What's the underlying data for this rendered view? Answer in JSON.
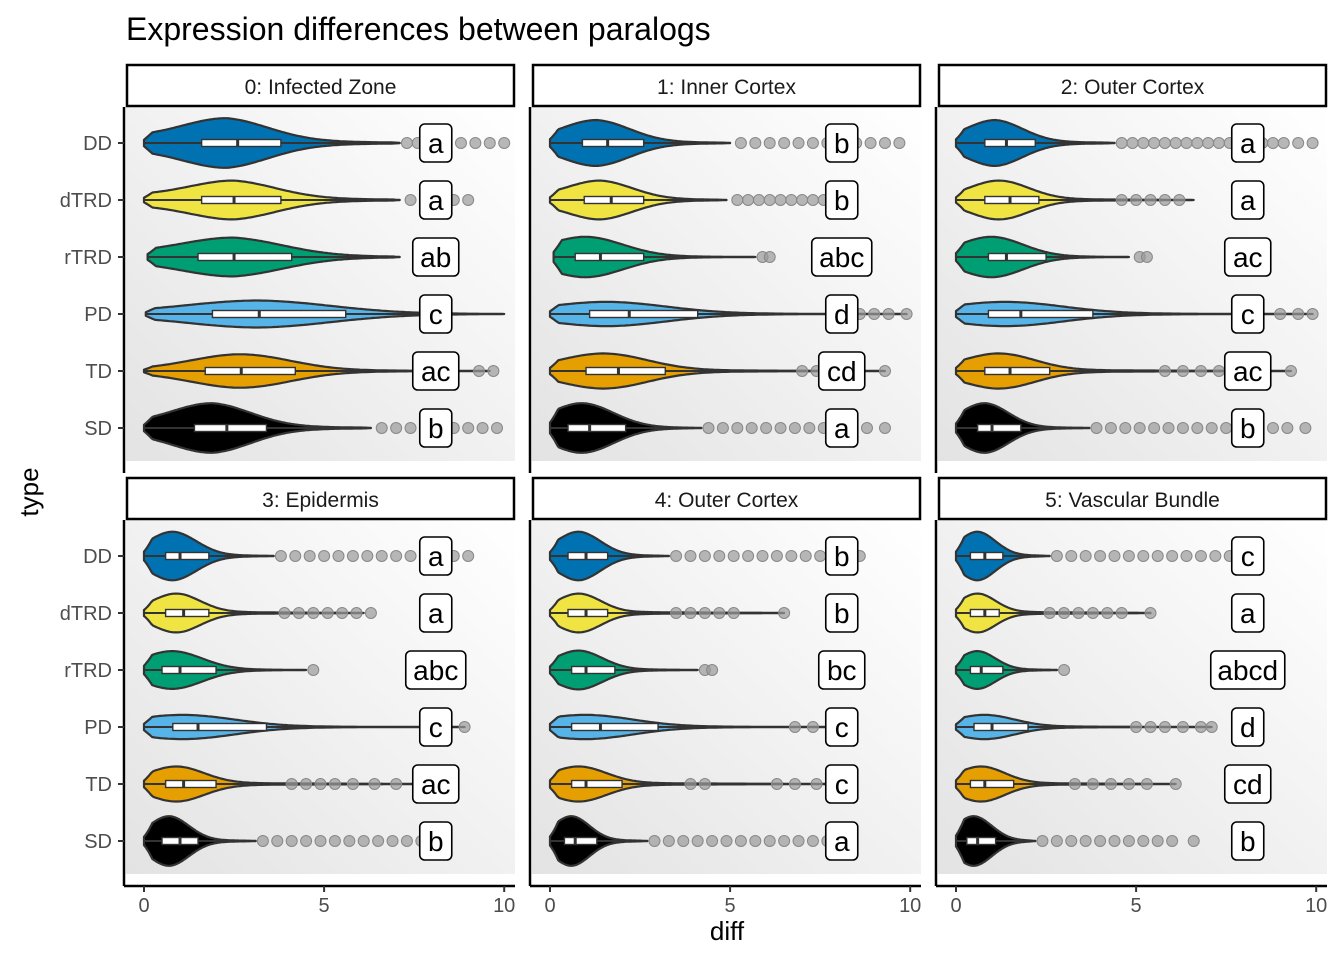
{
  "title": "Expression differences between paralogs",
  "xlabel": "diff",
  "ylabel": "type",
  "colors": {
    "DD": "#0072B2",
    "dTRD": "#F0E442",
    "rTRD": "#009E73",
    "PD": "#56B4E9",
    "TD": "#E69F00",
    "SD": "#000000",
    "outlier": "#9a9a9a",
    "panel_bg_light": "#ffffff",
    "panel_bg_dark": "#e6e6e6"
  },
  "chart_data": {
    "type": "violin",
    "xlim": [
      -0.5,
      10.3
    ],
    "x_ticks": [
      0,
      5,
      10
    ],
    "x_tick_labels": [
      "0",
      "5",
      "10"
    ],
    "categories": [
      "DD",
      "dTRD",
      "rTRD",
      "PD",
      "TD",
      "SD"
    ],
    "facets": [
      {
        "label": "0: Infected Zone",
        "series": [
          {
            "type": "DD",
            "letter": "a",
            "min": 0,
            "q1": 1.6,
            "median": 2.6,
            "q3": 3.8,
            "whisker": 7.1,
            "max_width": 0.92,
            "mode": 2.3,
            "tail": 0.35,
            "outliers": [
              7.3,
              7.6,
              8.0,
              8.4,
              8.8,
              9.2,
              9.6,
              10.0
            ]
          },
          {
            "type": "dTRD",
            "letter": "a",
            "min": 0,
            "q1": 1.6,
            "median": 2.5,
            "q3": 3.8,
            "whisker": 7.1,
            "max_width": 0.72,
            "mode": 2.5,
            "tail": 0.35,
            "outliers": [
              7.4,
              7.8,
              8.2,
              8.6,
              9.0
            ]
          },
          {
            "type": "rTRD",
            "letter": "ab",
            "min": 0.1,
            "q1": 1.5,
            "median": 2.5,
            "q3": 4.1,
            "whisker": 7.1,
            "max_width": 0.72,
            "mode": 2.5,
            "tail": 0.3,
            "outliers": []
          },
          {
            "type": "PD",
            "letter": "c",
            "min": 0.05,
            "q1": 1.9,
            "median": 3.2,
            "q3": 5.6,
            "whisker": 10.0,
            "max_width": 0.5,
            "mode": 3.2,
            "tail": 0.12,
            "outliers": []
          },
          {
            "type": "TD",
            "letter": "ac",
            "min": 0,
            "q1": 1.7,
            "median": 2.7,
            "q3": 4.2,
            "whisker": 9.6,
            "max_width": 0.62,
            "mode": 2.7,
            "tail": 0.1,
            "outliers": [
              9.3,
              9.7
            ]
          },
          {
            "type": "SD",
            "letter": "b",
            "min": 0,
            "q1": 1.4,
            "median": 2.3,
            "q3": 3.4,
            "whisker": 6.3,
            "max_width": 0.92,
            "mode": 1.9,
            "tail": 0.25,
            "outliers": [
              6.6,
              7.0,
              7.4,
              7.8,
              8.2,
              8.6,
              9.0,
              9.4,
              9.8
            ]
          }
        ]
      },
      {
        "label": "1: Inner Cortex",
        "series": [
          {
            "type": "DD",
            "letter": "b",
            "min": 0,
            "q1": 0.9,
            "median": 1.6,
            "q3": 2.6,
            "whisker": 5.0,
            "max_width": 0.85,
            "mode": 1.3,
            "tail": 0.2,
            "outliers": [
              5.3,
              5.7,
              6.1,
              6.5,
              6.9,
              7.3,
              7.7,
              8.1,
              8.5,
              8.9,
              9.3,
              9.7
            ]
          },
          {
            "type": "dTRD",
            "letter": "b",
            "min": 0,
            "q1": 0.95,
            "median": 1.7,
            "q3": 2.6,
            "whisker": 4.9,
            "max_width": 0.72,
            "mode": 1.4,
            "tail": 0.2,
            "outliers": [
              5.2,
              5.5,
              5.8,
              6.1,
              6.4,
              6.7,
              7.0,
              7.3,
              7.6
            ]
          },
          {
            "type": "rTRD",
            "letter": "abc",
            "min": 0.1,
            "q1": 0.7,
            "median": 1.4,
            "q3": 2.6,
            "whisker": 5.7,
            "max_width": 0.75,
            "mode": 1.0,
            "tail": 0.1,
            "outliers": [
              5.9,
              6.1
            ]
          },
          {
            "type": "PD",
            "letter": "d",
            "min": 0,
            "q1": 1.1,
            "median": 2.2,
            "q3": 4.1,
            "whisker": 9.9,
            "max_width": 0.45,
            "mode": 1.6,
            "tail": 0.1,
            "outliers": [
              8.6,
              9.0,
              9.4,
              9.9
            ]
          },
          {
            "type": "TD",
            "letter": "cd",
            "min": 0,
            "q1": 1.0,
            "median": 1.9,
            "q3": 3.2,
            "whisker": 9.3,
            "max_width": 0.65,
            "mode": 1.5,
            "tail": 0.1,
            "outliers": [
              7.0,
              7.4,
              7.8,
              8.3,
              9.3
            ]
          },
          {
            "type": "SD",
            "letter": "a",
            "min": 0,
            "q1": 0.5,
            "median": 1.1,
            "q3": 2.1,
            "whisker": 4.2,
            "max_width": 0.92,
            "mode": 0.9,
            "tail": 0.1,
            "outliers": [
              4.4,
              4.8,
              5.2,
              5.6,
              6.0,
              6.4,
              6.8,
              7.2,
              7.6,
              8.0,
              8.4,
              8.8,
              9.3
            ]
          }
        ]
      },
      {
        "label": "2: Outer Cortex",
        "series": [
          {
            "type": "DD",
            "letter": "a",
            "min": 0,
            "q1": 0.8,
            "median": 1.4,
            "q3": 2.2,
            "whisker": 4.4,
            "max_width": 0.85,
            "mode": 1.1,
            "tail": 0.2,
            "outliers": [
              4.6,
              4.9,
              5.2,
              5.5,
              5.8,
              6.1,
              6.4,
              6.7,
              7.0,
              7.3,
              7.6,
              7.9,
              8.2,
              8.5,
              8.8,
              9.1,
              9.5,
              9.9
            ]
          },
          {
            "type": "dTRD",
            "letter": "a",
            "min": 0,
            "q1": 0.8,
            "median": 1.5,
            "q3": 2.3,
            "whisker": 6.6,
            "max_width": 0.72,
            "mode": 1.2,
            "tail": 0.1,
            "outliers": [
              4.6,
              5.0,
              5.4,
              5.8,
              6.2
            ]
          },
          {
            "type": "rTRD",
            "letter": "ac",
            "min": 0,
            "q1": 0.9,
            "median": 1.4,
            "q3": 2.5,
            "whisker": 4.8,
            "max_width": 0.75,
            "mode": 1.0,
            "tail": 0.1,
            "outliers": [
              5.1,
              5.3
            ]
          },
          {
            "type": "PD",
            "letter": "c",
            "min": 0,
            "q1": 0.9,
            "median": 1.8,
            "q3": 3.8,
            "whisker": 9.9,
            "max_width": 0.45,
            "mode": 1.4,
            "tail": 0.1,
            "outliers": [
              9.0,
              9.5,
              9.9
            ]
          },
          {
            "type": "TD",
            "letter": "ac",
            "min": 0,
            "q1": 0.8,
            "median": 1.5,
            "q3": 2.6,
            "whisker": 9.3,
            "max_width": 0.65,
            "mode": 1.2,
            "tail": 0.1,
            "outliers": [
              5.8,
              6.3,
              6.8,
              7.3,
              8.1,
              9.3
            ]
          },
          {
            "type": "SD",
            "letter": "b",
            "min": 0,
            "q1": 0.6,
            "median": 1.0,
            "q3": 1.8,
            "whisker": 3.7,
            "max_width": 0.92,
            "mode": 0.8,
            "tail": 0.1,
            "outliers": [
              3.9,
              4.3,
              4.7,
              5.1,
              5.5,
              5.9,
              6.3,
              6.7,
              7.1,
              7.5,
              7.9,
              8.3,
              8.8,
              9.2,
              9.7
            ]
          }
        ]
      },
      {
        "label": "3: Epidermis",
        "series": [
          {
            "type": "DD",
            "letter": "a",
            "min": 0,
            "q1": 0.6,
            "median": 1.0,
            "q3": 1.8,
            "whisker": 3.6,
            "max_width": 0.9,
            "mode": 0.8,
            "tail": 0.1,
            "outliers": [
              3.8,
              4.2,
              4.6,
              5.0,
              5.4,
              5.8,
              6.2,
              6.6,
              7.0,
              7.4,
              7.8,
              8.2,
              8.6,
              9.0
            ]
          },
          {
            "type": "dTRD",
            "letter": "a",
            "min": 0,
            "q1": 0.6,
            "median": 1.1,
            "q3": 1.8,
            "whisker": 6.1,
            "max_width": 0.72,
            "mode": 0.9,
            "tail": 0.1,
            "outliers": [
              3.9,
              4.3,
              4.7,
              5.1,
              5.5,
              5.9,
              6.3
            ]
          },
          {
            "type": "rTRD",
            "letter": "abc",
            "min": 0,
            "q1": 0.5,
            "median": 1.0,
            "q3": 2.0,
            "whisker": 4.5,
            "max_width": 0.7,
            "mode": 0.8,
            "tail": 0.1,
            "outliers": [
              4.7
            ]
          },
          {
            "type": "PD",
            "letter": "c",
            "min": 0,
            "q1": 0.8,
            "median": 1.5,
            "q3": 3.4,
            "whisker": 8.9,
            "max_width": 0.45,
            "mode": 1.1,
            "tail": 0.1,
            "outliers": [
              7.8,
              8.3,
              8.9
            ]
          },
          {
            "type": "TD",
            "letter": "ac",
            "min": 0,
            "q1": 0.6,
            "median": 1.1,
            "q3": 2.0,
            "whisker": 8.0,
            "max_width": 0.65,
            "mode": 0.9,
            "tail": 0.1,
            "outliers": [
              4.1,
              4.5,
              4.9,
              5.3,
              5.8,
              6.4,
              7.0,
              8.0
            ]
          },
          {
            "type": "SD",
            "letter": "b",
            "min": 0,
            "q1": 0.5,
            "median": 1.0,
            "q3": 1.5,
            "whisker": 3.1,
            "max_width": 0.92,
            "mode": 0.7,
            "tail": 0.1,
            "outliers": [
              3.3,
              3.7,
              4.1,
              4.5,
              4.9,
              5.3,
              5.7,
              6.1,
              6.5,
              6.9,
              7.3,
              7.7,
              8.1
            ]
          }
        ]
      },
      {
        "label": "4: Outer Cortex",
        "series": [
          {
            "type": "DD",
            "letter": "b",
            "min": 0,
            "q1": 0.5,
            "median": 1.0,
            "q3": 1.6,
            "whisker": 3.3,
            "max_width": 0.9,
            "mode": 0.8,
            "tail": 0.1,
            "outliers": [
              3.5,
              3.9,
              4.3,
              4.7,
              5.1,
              5.5,
              5.9,
              6.3,
              6.7,
              7.1,
              7.5,
              7.9,
              8.3,
              8.6
            ]
          },
          {
            "type": "dTRD",
            "letter": "b",
            "min": 0,
            "q1": 0.5,
            "median": 1.0,
            "q3": 1.6,
            "whisker": 6.5,
            "max_width": 0.72,
            "mode": 0.8,
            "tail": 0.1,
            "outliers": [
              3.5,
              3.9,
              4.3,
              4.7,
              5.1,
              6.5
            ]
          },
          {
            "type": "rTRD",
            "letter": "bc",
            "min": 0,
            "q1": 0.6,
            "median": 1.0,
            "q3": 1.8,
            "whisker": 4.1,
            "max_width": 0.72,
            "mode": 0.8,
            "tail": 0.1,
            "outliers": [
              4.3,
              4.5
            ]
          },
          {
            "type": "PD",
            "letter": "c",
            "min": 0,
            "q1": 0.6,
            "median": 1.4,
            "q3": 3.0,
            "whisker": 8.4,
            "max_width": 0.45,
            "mode": 1.0,
            "tail": 0.1,
            "outliers": [
              6.8,
              7.3,
              7.8,
              8.4
            ]
          },
          {
            "type": "TD",
            "letter": "c",
            "min": 0,
            "q1": 0.6,
            "median": 1.0,
            "q3": 2.0,
            "whisker": 7.9,
            "max_width": 0.65,
            "mode": 0.8,
            "tail": 0.1,
            "outliers": [
              3.9,
              4.3,
              6.3,
              6.8,
              7.4,
              7.9
            ]
          },
          {
            "type": "SD",
            "letter": "a",
            "min": 0,
            "q1": 0.4,
            "median": 0.7,
            "q3": 1.3,
            "whisker": 2.7,
            "max_width": 0.92,
            "mode": 0.6,
            "tail": 0.1,
            "outliers": [
              2.9,
              3.3,
              3.7,
              4.1,
              4.5,
              4.9,
              5.3,
              5.7,
              6.1,
              6.5,
              6.9,
              7.3,
              7.7
            ]
          }
        ]
      },
      {
        "label": "5: Vascular Bundle",
        "series": [
          {
            "type": "DD",
            "letter": "c",
            "min": 0,
            "q1": 0.4,
            "median": 0.8,
            "q3": 1.3,
            "whisker": 2.6,
            "max_width": 0.9,
            "mode": 0.6,
            "tail": 0.1,
            "outliers": [
              2.8,
              3.2,
              3.6,
              4.0,
              4.4,
              4.8,
              5.2,
              5.6,
              6.0,
              6.4,
              6.8,
              7.2,
              7.6
            ]
          },
          {
            "type": "dTRD",
            "letter": "a",
            "min": 0,
            "q1": 0.4,
            "median": 0.8,
            "q3": 1.2,
            "whisker": 5.4,
            "max_width": 0.72,
            "mode": 0.6,
            "tail": 0.1,
            "outliers": [
              2.6,
              3.0,
              3.4,
              3.8,
              4.2,
              4.6,
              5.4
            ]
          },
          {
            "type": "rTRD",
            "letter": "abcd",
            "min": 0,
            "q1": 0.4,
            "median": 0.7,
            "q3": 1.3,
            "whisker": 2.8,
            "max_width": 0.7,
            "mode": 0.6,
            "tail": 0.1,
            "outliers": [
              3.0
            ]
          },
          {
            "type": "PD",
            "letter": "d",
            "min": 0,
            "q1": 0.5,
            "median": 1.0,
            "q3": 2.0,
            "whisker": 7.1,
            "max_width": 0.45,
            "mode": 0.8,
            "tail": 0.1,
            "outliers": [
              5.0,
              5.4,
              5.8,
              6.3,
              6.8,
              7.1
            ]
          },
          {
            "type": "TD",
            "letter": "cd",
            "min": 0,
            "q1": 0.4,
            "median": 0.8,
            "q3": 1.6,
            "whisker": 6.1,
            "max_width": 0.65,
            "mode": 0.7,
            "tail": 0.1,
            "outliers": [
              3.3,
              3.8,
              4.3,
              4.8,
              5.3,
              6.1
            ]
          },
          {
            "type": "SD",
            "letter": "b",
            "min": 0,
            "q1": 0.3,
            "median": 0.6,
            "q3": 1.1,
            "whisker": 2.2,
            "max_width": 0.92,
            "mode": 0.5,
            "tail": 0.1,
            "outliers": [
              2.4,
              2.8,
              3.2,
              3.6,
              4.0,
              4.4,
              4.8,
              5.2,
              5.6,
              6.0,
              6.6
            ]
          }
        ]
      }
    ]
  }
}
